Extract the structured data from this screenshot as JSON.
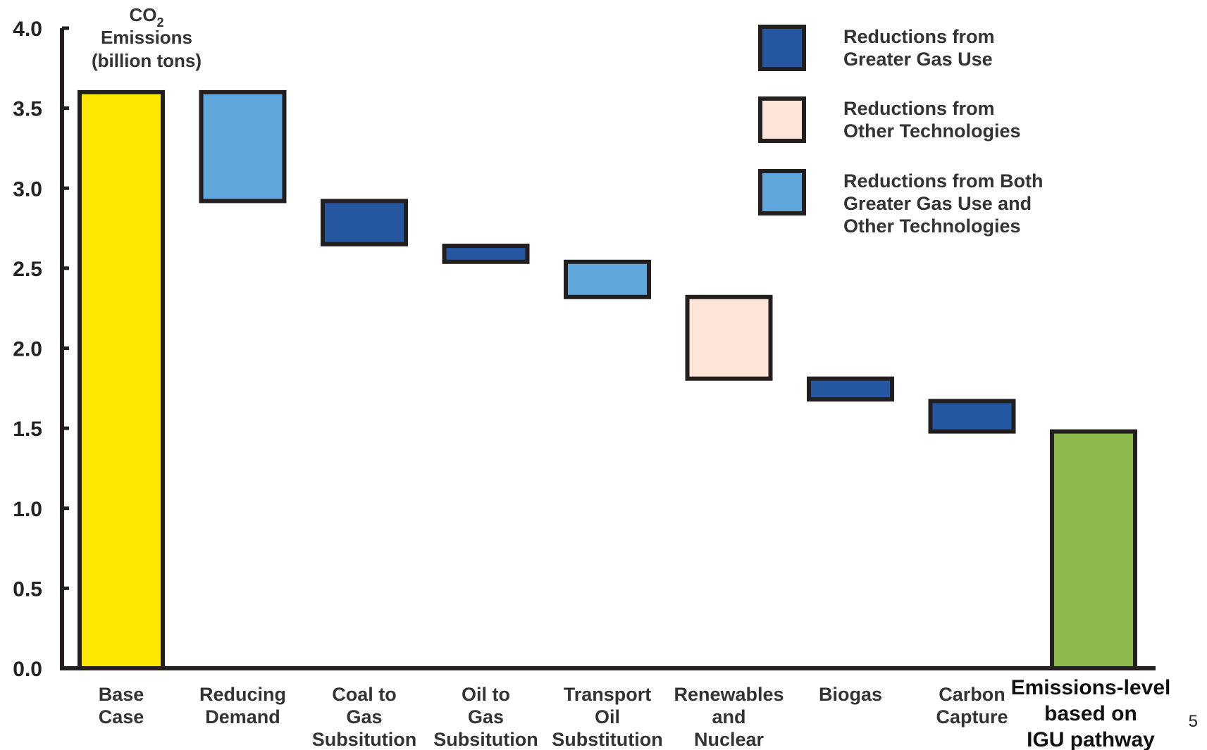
{
  "chart_data": {
    "type": "bar",
    "subtype": "waterfall",
    "ylabel_lines": [
      "CO",
      "Emissions",
      "(billion tons)"
    ],
    "ylabel_subscript": "2",
    "ylim": [
      0,
      4.0
    ],
    "yticks": [
      "0.0",
      "0.5",
      "1.0",
      "1.5",
      "2.0",
      "2.5",
      "3.0",
      "3.5",
      "4.0"
    ],
    "categories": [
      [
        "Base",
        "Case"
      ],
      [
        "Reducing",
        "Demand"
      ],
      [
        "Coal to",
        "Gas",
        "Subsitution"
      ],
      [
        "Oil to",
        "Gas",
        "Subsitution"
      ],
      [
        "Transport",
        "Oil",
        "Substitution"
      ],
      [
        "Renewables",
        "and",
        "Nuclear"
      ],
      [
        "Biogas"
      ],
      [
        "Carbon",
        "Capture"
      ],
      [
        "Emissions-level",
        "based on",
        "IGU pathway"
      ]
    ],
    "bars": [
      {
        "bottom": 0.0,
        "top": 3.6,
        "kind": "base"
      },
      {
        "bottom": 2.92,
        "top": 3.6,
        "kind": "both"
      },
      {
        "bottom": 2.65,
        "top": 2.92,
        "kind": "gas"
      },
      {
        "bottom": 2.54,
        "top": 2.64,
        "kind": "gas"
      },
      {
        "bottom": 2.32,
        "top": 2.54,
        "kind": "both"
      },
      {
        "bottom": 1.81,
        "top": 2.32,
        "kind": "other"
      },
      {
        "bottom": 1.68,
        "top": 1.81,
        "kind": "gas"
      },
      {
        "bottom": 1.48,
        "top": 1.67,
        "kind": "gas"
      },
      {
        "bottom": 0.0,
        "top": 1.48,
        "kind": "result"
      }
    ],
    "colors": {
      "base": "#ffe800",
      "gas": "#2457a0",
      "other": "#fde6d8",
      "both": "#5ea6db",
      "result": "#8cba4c",
      "outline": "#231f1e"
    },
    "legend": {
      "position": "top-right",
      "entries": [
        {
          "kind": "gas",
          "lines": [
            "Reductions from",
            "Greater Gas Use"
          ]
        },
        {
          "kind": "other",
          "lines": [
            "Reductions from",
            "Other Technologies"
          ]
        },
        {
          "kind": "both",
          "lines": [
            "Reductions from Both",
            "Greater Gas Use and",
            "Other Technologies"
          ]
        }
      ]
    },
    "grid": false
  },
  "page_number": "5"
}
